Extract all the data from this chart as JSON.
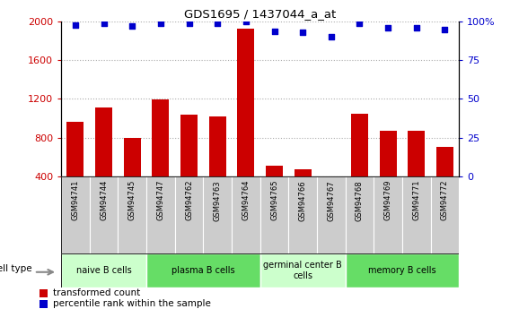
{
  "title": "GDS1695 / 1437044_a_at",
  "samples": [
    "GSM94741",
    "GSM94744",
    "GSM94745",
    "GSM94747",
    "GSM94762",
    "GSM94763",
    "GSM94764",
    "GSM94765",
    "GSM94766",
    "GSM94767",
    "GSM94768",
    "GSM94769",
    "GSM94771",
    "GSM94772"
  ],
  "bar_values": [
    960,
    1110,
    800,
    1190,
    1040,
    1020,
    1930,
    510,
    470,
    370,
    1050,
    870,
    870,
    700
  ],
  "dot_values": [
    98,
    99,
    97,
    99,
    99,
    99,
    100,
    94,
    93,
    90,
    99,
    96,
    96,
    95
  ],
  "bar_color": "#cc0000",
  "dot_color": "#0000cc",
  "ylim_left": [
    400,
    2000
  ],
  "ylim_right": [
    0,
    100
  ],
  "yticks_left": [
    400,
    800,
    1200,
    1600,
    2000
  ],
  "yticks_right": [
    0,
    25,
    50,
    75,
    100
  ],
  "cell_groups": [
    {
      "label": "naive B cells",
      "start": 0,
      "end": 3,
      "color": "#ccffcc"
    },
    {
      "label": "plasma B cells",
      "start": 3,
      "end": 7,
      "color": "#66dd66"
    },
    {
      "label": "germinal center B\ncells",
      "start": 7,
      "end": 10,
      "color": "#ccffcc"
    },
    {
      "label": "memory B cells",
      "start": 10,
      "end": 14,
      "color": "#66dd66"
    }
  ],
  "legend_bar_label": "transformed count",
  "legend_dot_label": "percentile rank within the sample",
  "cell_type_label": "cell type",
  "background_color": "#ffffff",
  "grid_color": "#aaaaaa",
  "tick_area_color": "#cccccc",
  "n_samples": 14
}
